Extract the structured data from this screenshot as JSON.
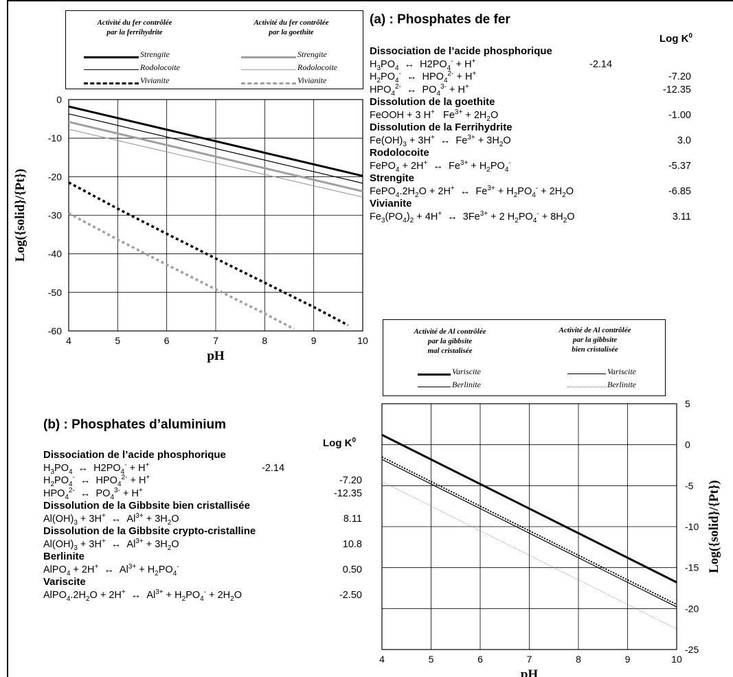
{
  "panel_a": {
    "title": "(a) : Phosphates de fer",
    "logk_label": "Log K",
    "logk_sup": "0",
    "legend": {
      "head_left": [
        "Activité du fer contrôlée",
        "par la ferrihydrite"
      ],
      "head_right": [
        "Activité du fer contrôlée",
        "par la goethite"
      ],
      "items_left": [
        "Strengite",
        "Rodolocoite",
        "Vivianite"
      ],
      "items_right": [
        "Strengite",
        "Rodolocoite",
        "Vivianite"
      ]
    },
    "sections": [
      {
        "heading": "Dissociation de l’acide phosphorique",
        "rows": [
          {
            "eq": "H<sub>3</sub>PO<sub>4</sub> &nbsp;↔ &nbsp;H2PO<sub>4</sub><sup>-</sup> + H<sup>+</sup>",
            "k": "-2.14",
            "k_inline": true
          },
          {
            "eq": "H<sub>2</sub>PO<sub>4</sub><sup>-</sup> &nbsp;↔ &nbsp;HPO<sub>4</sub><sup>2-</sup> + H<sup>+</sup>",
            "k": "-7.20"
          },
          {
            "eq": "HPO<sub>4</sub><sup>2-</sup> &nbsp;↔ &nbsp;PO<sub>4</sub><sup>3-</sup> + H<sup>+</sup>",
            "k": "-12.35"
          }
        ]
      },
      {
        "heading": "Dissolution de la goethite",
        "rows": [
          {
            "eq": "FeOOH + 3 H<sup>+</sup> &nbsp;&nbsp;Fe<sup>3+</sup> + 2H<sub>2</sub>O",
            "k": "-1.00"
          }
        ]
      },
      {
        "heading": "Dissolution de la Ferrihydrite",
        "rows": [
          {
            "eq": "Fe(OH)<sub>3</sub> + 3H<sup>+</sup> &nbsp;↔ &nbsp;Fe<sup>3+</sup> + 3H<sub>2</sub>O",
            "k": "3.0"
          }
        ]
      },
      {
        "heading": "Rodolocoite",
        "rows": [
          {
            "eq": "FePO<sub>4</sub> + 2H<sup>+</sup> &nbsp;↔ &nbsp;Fe<sup>3+</sup> + H<sub>2</sub>PO<sub>4</sub><sup>-</sup>",
            "k": "-5.37"
          }
        ]
      },
      {
        "heading": "Strengite",
        "rows": [
          {
            "eq": "FePO<sub>4</sub>.2H<sub>2</sub>O + 2H<sup>+</sup> &nbsp;↔ &nbsp;Fe<sup>3+</sup> + H<sub>2</sub>PO<sub>4</sub><sup>-</sup> + 2H<sub>2</sub>O",
            "k": "-6.85"
          }
        ]
      },
      {
        "heading": "Vivianite",
        "rows": [
          {
            "eq": "Fe<sub>3</sub>(PO<sub>4</sub>)<sub>2</sub> + 4H<sup>+</sup> &nbsp;↔ &nbsp;3Fe<sup>3+</sup> + 2 H<sub>2</sub>PO<sub>4</sub><sup>-</sup> + 8H<sub>2</sub>O",
            "k": "3.11"
          }
        ]
      }
    ]
  },
  "panel_b": {
    "title": "(b) : Phosphates d’aluminium",
    "logk_label": "Log K",
    "logk_sup": "0",
    "legend": {
      "head_left": [
        "Activité de Al contrôlée",
        "par la gibbsite",
        "mal cristalisée"
      ],
      "head_right": [
        "Activité de Al contrôlée",
        "par la gibbsite",
        "bien cristalisée"
      ],
      "items_left": [
        "Variscite",
        "Berlinite"
      ],
      "items_right": [
        "Variscite",
        "Berlinite"
      ]
    },
    "sections": [
      {
        "heading": "Dissociation de l’acide phosphorique",
        "rows": [
          {
            "eq": "H<sub>3</sub>PO<sub>4</sub> &nbsp;↔ &nbsp;H2PO<sub>4</sub><sup>-</sup> + H<sup>+</sup>",
            "k": "-2.14",
            "k_inline": true
          },
          {
            "eq": "H<sub>2</sub>PO<sub>4</sub><sup>-</sup> &nbsp;↔ &nbsp;HPO<sub>4</sub><sup>2-</sup> + H<sup>+</sup>",
            "k": "-7.20"
          },
          {
            "eq": "HPO<sub>4</sub><sup>2-</sup> &nbsp;↔ &nbsp;PO<sub>4</sub><sup>3-</sup> + H<sup>+</sup>",
            "k": "-12.35"
          }
        ]
      },
      {
        "heading": "Dissolution de la Gibbsite bien cristallisée",
        "rows": [
          {
            "eq": "Al(OH)<sub>3</sub> + 3H<sup>+</sup> &nbsp;↔ &nbsp;Al<sup>3+</sup> + 3H<sub>2</sub>O",
            "k": "8.11"
          }
        ]
      },
      {
        "heading": "Dissolution de la Gibbsite crypto-cristalline",
        "rows": [
          {
            "eq": "Al(OH)<sub>3</sub> + 3H<sup>+</sup> &nbsp;↔ &nbsp;Al<sup>3+</sup> + 3H<sub>2</sub>O",
            "k": "10.8"
          }
        ]
      },
      {
        "heading": "Berlinite",
        "rows": [
          {
            "eq": "AlPO<sub>4</sub> + 2H<sup>+</sup> &nbsp;↔ &nbsp;Al<sup>3+</sup> + H<sub>2</sub>PO<sub>4</sub><sup>-</sup>",
            "k": "0.50"
          }
        ]
      },
      {
        "heading": "Variscite",
        "rows": [
          {
            "eq": "AlPO<sub>4</sub>.2H<sub>2</sub>O + 2H<sup>+</sup> &nbsp;↔ &nbsp;Al<sup>3+</sup> + H<sub>2</sub>PO<sub>4</sub><sup>-</sup> + 2H<sub>2</sub>O",
            "k": "-2.50"
          }
        ]
      }
    ]
  },
  "chart_data": [
    {
      "type": "line",
      "id": "iron",
      "xlabel": "pH",
      "ylabel": "Log({solid}/{Pt})",
      "xlim": [
        4,
        10
      ],
      "ylim": [
        -60,
        0
      ],
      "xticks": [
        4,
        5,
        6,
        7,
        8,
        9,
        10
      ],
      "yticks": [
        0,
        -10,
        -20,
        -30,
        -40,
        -50,
        -60
      ],
      "grid": true,
      "series": [
        {
          "name": "Strengite",
          "group": "ferrihydrite",
          "color": "#000000",
          "width": 3,
          "dash": "",
          "x": [
            4,
            10
          ],
          "y": [
            -1.8,
            -19.8
          ]
        },
        {
          "name": "Rodolocoite",
          "group": "ferrihydrite",
          "color": "#000000",
          "width": 1.2,
          "dash": "",
          "x": [
            4,
            10
          ],
          "y": [
            -3.7,
            -21.7
          ]
        },
        {
          "name": "Strengite",
          "group": "goethite",
          "color": "#a0a0a0",
          "width": 3,
          "dash": "",
          "x": [
            4,
            10
          ],
          "y": [
            -5.8,
            -23.8
          ]
        },
        {
          "name": "Rodolocoite",
          "group": "goethite",
          "color": "#a0a0a0",
          "width": 1.2,
          "dash": "",
          "x": [
            4,
            10
          ],
          "y": [
            -7.7,
            -25.3
          ]
        },
        {
          "name": "Vivianite",
          "group": "ferrihydrite",
          "color": "#000000",
          "width": 3.5,
          "dash": "4,4",
          "x": [
            4,
            5,
            6,
            7,
            8,
            9,
            9.7
          ],
          "y": [
            -21.5,
            -28.3,
            -34.8,
            -41.2,
            -47.5,
            -53.8,
            -58.5
          ]
        },
        {
          "name": "Vivianite",
          "group": "goethite",
          "color": "#a0a0a0",
          "width": 3.5,
          "dash": "4,4",
          "x": [
            4,
            5,
            6,
            7,
            8,
            8.6
          ],
          "y": [
            -29.5,
            -36.3,
            -42.8,
            -49.2,
            -55.5,
            -59.5
          ]
        }
      ]
    },
    {
      "type": "line",
      "id": "aluminium",
      "xlabel": "pH",
      "ylabel": "Log({solid}/{Pt})",
      "xlim": [
        4,
        10
      ],
      "ylim": [
        -25,
        5
      ],
      "xticks": [
        4,
        5,
        6,
        7,
        8,
        9,
        10
      ],
      "yticks": [
        5,
        0,
        -5,
        -10,
        -15,
        -20,
        -25
      ],
      "grid": true,
      "series": [
        {
          "name": "Variscite",
          "group": "gibbsite mal cristalisée",
          "color": "#000000",
          "width": 3,
          "dash": "",
          "x": [
            4,
            10
          ],
          "y": [
            1.2,
            -16.8
          ]
        },
        {
          "name": "Berlinite",
          "group": "gibbsite mal cristalisée",
          "color": "#000000",
          "width": 1.2,
          "dash": "",
          "x": [
            4,
            10
          ],
          "y": [
            -1.8,
            -19.8
          ]
        },
        {
          "name": "Variscite",
          "group": "gibbsite bien cristalisée",
          "color": "#000000",
          "width": 2,
          "dash": "2,2",
          "x": [
            4,
            10
          ],
          "y": [
            -1.5,
            -19.5
          ]
        },
        {
          "name": "Berlinite",
          "group": "gibbsite bien cristalisée",
          "color": "#888888",
          "width": 0.8,
          "dash": "1,1",
          "x": [
            4,
            10
          ],
          "y": [
            -4.5,
            -22.5
          ]
        }
      ]
    }
  ]
}
